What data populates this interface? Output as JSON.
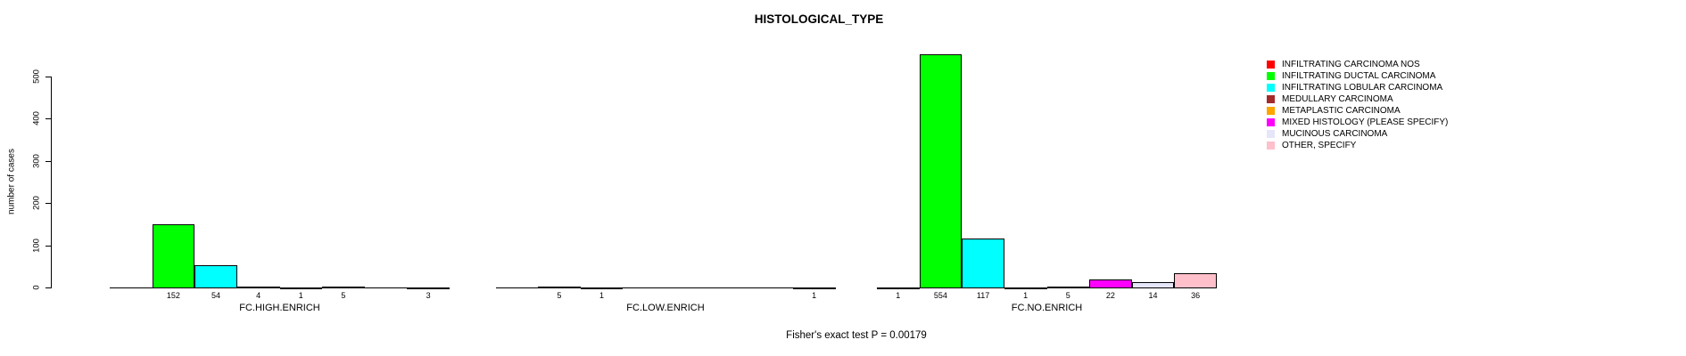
{
  "title": "HISTOLOGICAL_TYPE",
  "footer": "Fisher's exact test P = 0.00179",
  "chart_data": {
    "type": "bar",
    "title": "HISTOLOGICAL_TYPE",
    "xlabel": "",
    "ylabel": "number of cases",
    "ylim": [
      0,
      500
    ],
    "yticks": [
      0,
      100,
      200,
      300,
      400,
      500
    ],
    "grid": false,
    "legend_position": "right",
    "value_label_rule": "counts printed under each bar, omitted when count is 0",
    "categories": [
      "INFILTRATING CARCINOMA NOS",
      "INFILTRATING DUCTAL CARCINOMA",
      "INFILTRATING LOBULAR CARCINOMA",
      "MEDULLARY CARCINOMA",
      "METAPLASTIC CARCINOMA",
      "MIXED HISTOLOGY (PLEASE SPECIFY)",
      "MUCINOUS CARCINOMA",
      "OTHER, SPECIFY"
    ],
    "colors": [
      "#FF0000",
      "#00FF00",
      "#00FFFF",
      "#A52A2A",
      "#FFA500",
      "#FF00FF",
      "#E6E6FA",
      "#FFC0CB"
    ],
    "groups": [
      {
        "label": "FC.HIGH.ENRICH",
        "values": [
          0,
          152,
          54,
          4,
          1,
          5,
          0,
          3
        ]
      },
      {
        "label": "FC.LOW.ENRICH",
        "values": [
          0,
          5,
          1,
          0,
          0,
          0,
          0,
          1
        ]
      },
      {
        "label": "FC.NO.ENRICH",
        "values": [
          1,
          554,
          117,
          1,
          5,
          22,
          14,
          36
        ]
      }
    ],
    "annotation": "Fisher's exact test P = 0.00179"
  },
  "legend": {
    "entries": [
      {
        "label": "INFILTRATING CARCINOMA NOS",
        "color": "#FF0000"
      },
      {
        "label": "INFILTRATING DUCTAL CARCINOMA",
        "color": "#00FF00"
      },
      {
        "label": "INFILTRATING LOBULAR CARCINOMA",
        "color": "#00FFFF"
      },
      {
        "label": "MEDULLARY CARCINOMA",
        "color": "#A52A2A"
      },
      {
        "label": "METAPLASTIC CARCINOMA",
        "color": "#FFA500"
      },
      {
        "label": "MIXED HISTOLOGY (PLEASE SPECIFY)",
        "color": "#FF00FF"
      },
      {
        "label": "MUCINOUS CARCINOMA",
        "color": "#E6E6FA"
      },
      {
        "label": "OTHER, SPECIFY",
        "color": "#FFC0CB"
      }
    ]
  }
}
